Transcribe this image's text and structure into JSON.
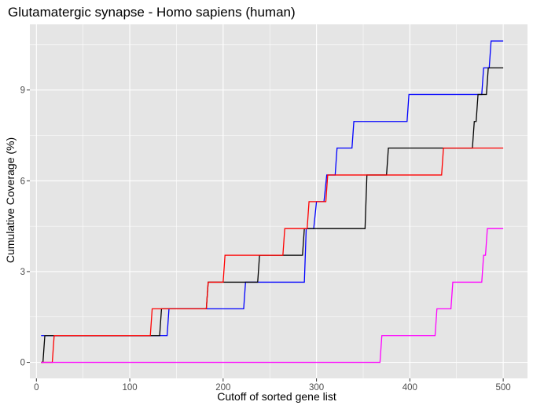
{
  "chart_data": {
    "type": "line",
    "step": true,
    "title": "Glutamatergic synapse - Homo sapiens (human)",
    "xlabel": "Cutoff of sorted gene list",
    "ylabel": "Cumulative Coverage (%)",
    "xlim": [
      -7,
      526
    ],
    "ylim": [
      -0.53,
      11.17
    ],
    "xticks": [
      0,
      100,
      200,
      300,
      400,
      500
    ],
    "yticks": [
      0,
      3,
      6,
      9
    ],
    "xtick_labels": [
      "0",
      "100",
      "200",
      "300",
      "400",
      "500"
    ],
    "ytick_labels": [
      "0",
      "3",
      "6",
      "9"
    ],
    "grid": true,
    "legend": "none",
    "background": "#e5e5e5",
    "gridline_color": "#ffffff",
    "series": [
      {
        "color": "#0000ff",
        "x": [
          5,
          8,
          140,
          142,
          222,
          224,
          287,
          289,
          297,
          300,
          308,
          311,
          320,
          322,
          338,
          340,
          397,
          399,
          477,
          479,
          485,
          487,
          500
        ],
        "y": [
          0.88,
          0.88,
          0.88,
          1.77,
          1.77,
          2.65,
          2.65,
          4.42,
          4.42,
          5.31,
          5.31,
          6.19,
          6.19,
          7.08,
          7.08,
          7.96,
          7.96,
          8.85,
          8.85,
          9.73,
          9.73,
          10.62,
          10.62
        ]
      },
      {
        "color": "#000000",
        "x": [
          5,
          7,
          9,
          132,
          134,
          182,
          184,
          237,
          239,
          285,
          287,
          352,
          354,
          375,
          377,
          467,
          469,
          471,
          473,
          482,
          484,
          500
        ],
        "y": [
          0,
          0,
          0.88,
          0.88,
          1.77,
          1.77,
          2.65,
          2.65,
          3.54,
          3.54,
          4.42,
          4.42,
          6.19,
          6.19,
          7.08,
          7.08,
          7.96,
          7.96,
          8.85,
          8.85,
          9.73,
          9.73
        ]
      },
      {
        "color": "#ff0000",
        "x": [
          5,
          17,
          19,
          122,
          124,
          182,
          184,
          200,
          202,
          264,
          266,
          290,
          292,
          310,
          312,
          434,
          436,
          500
        ],
        "y": [
          0,
          0,
          0.88,
          0.88,
          1.77,
          1.77,
          2.65,
          2.65,
          3.54,
          3.54,
          4.42,
          4.42,
          5.31,
          5.31,
          6.19,
          6.19,
          7.08,
          7.08
        ]
      },
      {
        "color": "#ff00ff",
        "x": [
          5,
          368,
          370,
          427,
          429,
          444,
          446,
          477,
          479,
          481,
          483,
          500
        ],
        "y": [
          0,
          0,
          0.88,
          0.88,
          1.77,
          1.77,
          2.65,
          2.65,
          3.54,
          3.54,
          4.42,
          4.42
        ]
      }
    ]
  }
}
